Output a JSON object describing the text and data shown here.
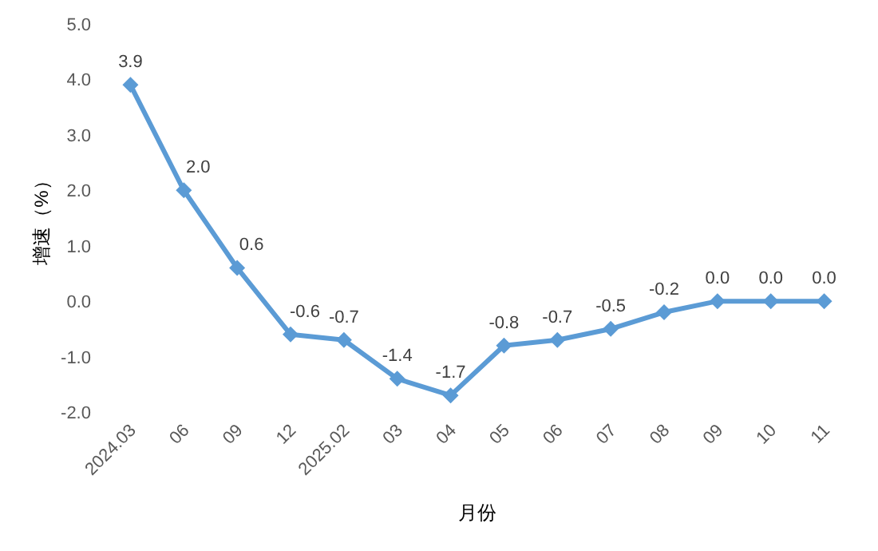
{
  "chart_data": {
    "type": "line",
    "categories": [
      "2024.03",
      "06",
      "09",
      "12",
      "2025.02",
      "03",
      "04",
      "05",
      "06",
      "07",
      "08",
      "09",
      "10",
      "11"
    ],
    "values": [
      3.9,
      2.0,
      0.6,
      -0.6,
      -0.7,
      -1.4,
      -1.7,
      -0.8,
      -0.7,
      -0.5,
      -0.2,
      0.0,
      0.0,
      0.0
    ],
    "color": "#5b9bd5",
    "ylim": [
      -2,
      5
    ],
    "yticks": [
      {
        "value": -2,
        "label": "-2.0"
      },
      {
        "value": -1,
        "label": "-1.0"
      },
      {
        "value": 0,
        "label": "0.0"
      },
      {
        "value": 1,
        "label": "1.0"
      },
      {
        "value": 2,
        "label": "2.0"
      },
      {
        "value": 3,
        "label": "3.0"
      },
      {
        "value": 4,
        "label": "4.0"
      },
      {
        "value": 5,
        "label": "5.0"
      }
    ],
    "xlabel": "月份",
    "ylabel": "增速（%）",
    "value_labels": [
      "3.9",
      "2.0",
      "0.6",
      "-0.6",
      "-0.7",
      "-1.4",
      "-1.7",
      "-0.8",
      "-0.7",
      "-0.5",
      "-0.2",
      "0.0",
      "0.0",
      "0.0"
    ],
    "marker": "diamond",
    "line_style": "solid"
  }
}
